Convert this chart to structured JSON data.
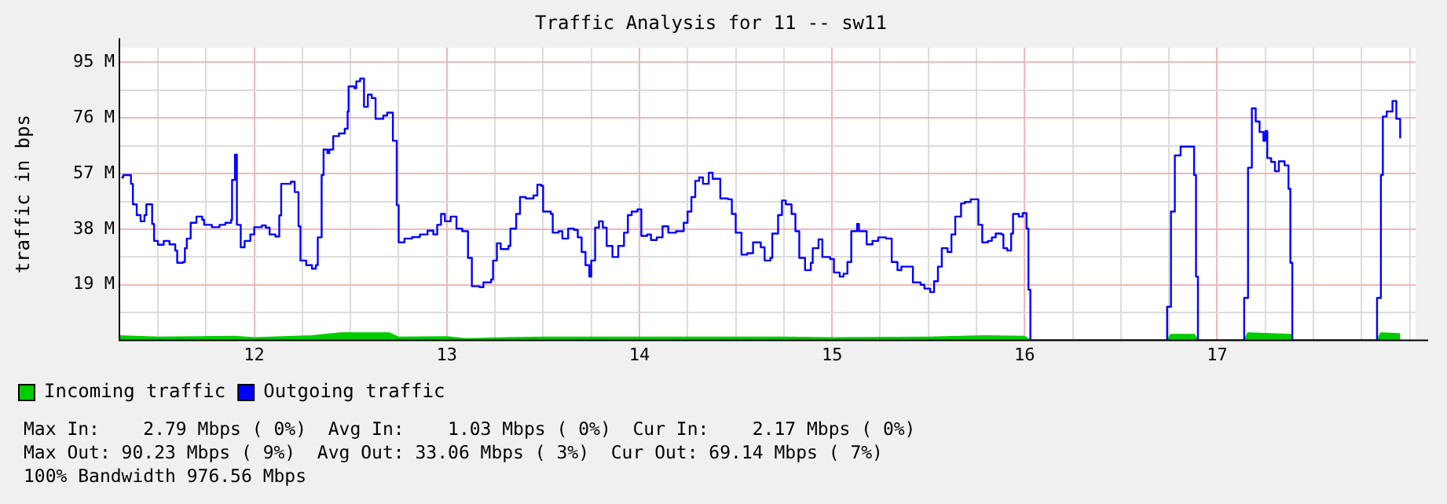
{
  "chart_data": {
    "type": "step",
    "title": "Traffic Analysis for 11 -- sw11",
    "ylabel": "traffic in bps",
    "xlim": [
      11.3,
      18.03
    ],
    "xticks": [
      {
        "value": 11.5,
        "label": null
      },
      {
        "value": 11.75,
        "label": null
      },
      12,
      {
        "value": 12.25,
        "label": null
      },
      {
        "value": 12.5,
        "label": null
      },
      {
        "value": 12.75,
        "label": null
      },
      13,
      {
        "value": 13.25,
        "label": null
      },
      {
        "value": 13.5,
        "label": null
      },
      {
        "value": 13.75,
        "label": null
      },
      14,
      {
        "value": 14.25,
        "label": null
      },
      {
        "value": 14.5,
        "label": null
      },
      {
        "value": 14.75,
        "label": null
      },
      15,
      {
        "value": 15.25,
        "label": null
      },
      {
        "value": 15.5,
        "label": null
      },
      {
        "value": 15.75,
        "label": null
      },
      16,
      {
        "value": 16.25,
        "label": null
      },
      {
        "value": 16.5,
        "label": null
      },
      {
        "value": 16.75,
        "label": null
      },
      17,
      {
        "value": 17.25,
        "label": null
      },
      {
        "value": 17.5,
        "label": null
      },
      {
        "value": 17.75,
        "label": null
      },
      {
        "value": 18,
        "label": null
      }
    ],
    "ylim": [
      0,
      100
    ],
    "yticks": [
      {
        "value": 9.5,
        "label": null
      },
      {
        "value": 19,
        "label": "19 M"
      },
      {
        "value": 28.5,
        "label": null
      },
      {
        "value": 38,
        "label": "38 M"
      },
      {
        "value": 47.5,
        "label": null
      },
      {
        "value": 57,
        "label": "57 M"
      },
      {
        "value": 66.5,
        "label": null
      },
      {
        "value": 76,
        "label": "76 M"
      },
      {
        "value": 85.5,
        "label": null
      },
      {
        "value": 95,
        "label": "95 M"
      }
    ],
    "grid": true,
    "legend": "bottom left",
    "marker": "none",
    "line_style": "solid",
    "series": [
      {
        "name": "Incoming traffic",
        "type": "area",
        "color": "#00cc00",
        "x": [
          11.3,
          11.5,
          11.9,
          12.0,
          12.3,
          12.45,
          12.7,
          12.75,
          13.0,
          13.1,
          13.3,
          13.5,
          14,
          14.5,
          14.75,
          15,
          15.5,
          15.8,
          16.0,
          16.03,
          16.74,
          16.76,
          16.88,
          16.9,
          17.14,
          17.16,
          17.38,
          17.39,
          17.83,
          17.85,
          17.95
        ],
        "values": [
          1.5,
          1,
          1.3,
          0.8,
          1.5,
          2.5,
          2.5,
          1,
          1.2,
          0.5,
          0.8,
          1,
          1,
          1,
          1,
          0.8,
          1,
          1.5,
          1.3,
          0,
          0,
          2,
          2,
          0,
          0,
          2.5,
          2,
          0,
          0,
          2.5,
          2.2
        ]
      },
      {
        "name": "Outgoing traffic",
        "color": "#0000ff",
        "x": [
          11.31,
          11.32,
          11.36,
          11.37,
          11.39,
          11.41,
          11.43,
          11.44,
          11.47,
          11.48,
          11.5,
          11.53,
          11.56,
          11.59,
          11.6,
          11.63,
          11.64,
          11.65,
          11.67,
          11.7,
          11.73,
          11.74,
          11.78,
          11.81,
          11.82,
          11.85,
          11.88,
          11.885,
          11.9,
          11.91,
          11.93,
          11.95,
          11.98,
          12.0,
          12.04,
          12.06,
          12.08,
          12.11,
          12.13,
          12.14,
          12.19,
          12.21,
          12.23,
          12.24,
          12.27,
          12.3,
          12.32,
          12.33,
          12.35,
          12.36,
          12.38,
          12.39,
          12.41,
          12.44,
          12.47,
          12.485,
          12.49,
          12.52,
          12.53,
          12.55,
          12.57,
          12.59,
          12.61,
          12.63,
          12.67,
          12.69,
          12.72,
          12.74,
          12.75,
          12.78,
          12.82,
          12.86,
          12.9,
          12.93,
          12.95,
          12.97,
          12.99,
          13.02,
          13.05,
          13.08,
          13.11,
          13.13,
          13.17,
          13.19,
          13.23,
          13.24,
          13.26,
          13.28,
          13.32,
          13.33,
          13.36,
          13.38,
          13.41,
          13.45,
          13.47,
          13.49,
          13.5,
          13.54,
          13.55,
          13.58,
          13.6,
          13.63,
          13.66,
          13.68,
          13.7,
          13.72,
          13.74,
          13.75,
          13.77,
          13.79,
          13.81,
          13.83,
          13.86,
          13.89,
          13.92,
          13.94,
          13.96,
          13.99,
          14.01,
          14.04,
          14.06,
          14.09,
          14.12,
          14.15,
          14.19,
          14.23,
          14.25,
          14.27,
          14.29,
          14.31,
          14.33,
          14.36,
          14.38,
          14.42,
          14.46,
          14.48,
          14.5,
          14.53,
          14.56,
          14.59,
          14.63,
          14.65,
          14.68,
          14.69,
          14.72,
          14.74,
          14.76,
          14.79,
          14.81,
          14.83,
          14.86,
          14.89,
          14.9,
          14.93,
          14.95,
          14.99,
          15.01,
          15.04,
          15.06,
          15.08,
          15.1,
          15.13,
          15.14,
          15.18,
          15.21,
          15.24,
          15.28,
          15.31,
          15.34,
          15.36,
          15.39,
          15.42,
          15.46,
          15.48,
          15.51,
          15.53,
          15.55,
          15.57,
          15.6,
          15.62,
          15.64,
          15.67,
          15.69,
          15.72,
          15.76,
          15.78,
          15.81,
          15.83,
          15.85,
          15.88,
          15.89,
          15.91,
          15.93,
          15.94,
          15.97,
          15.99,
          16.01,
          16.02,
          16.03,
          16.74,
          16.76,
          16.78,
          16.81,
          16.86,
          16.88,
          16.89,
          16.9,
          17.14,
          17.16,
          17.18,
          17.2,
          17.22,
          17.24,
          17.25,
          17.26,
          17.28,
          17.3,
          17.32,
          17.35,
          17.37,
          17.38,
          17.39,
          17.83,
          17.85,
          17.86,
          17.88,
          17.91,
          17.93,
          17.95
        ],
        "values": [
          55.7,
          56.5,
          53.5,
          46.5,
          42.8,
          40.7,
          42.8,
          46.5,
          39.8,
          34,
          32.7,
          34,
          32.8,
          30.7,
          26.5,
          26.8,
          31.5,
          34.8,
          40.2,
          42.3,
          41.2,
          39.5,
          38.7,
          38.7,
          39.5,
          40.2,
          41.2,
          54.8,
          63.5,
          39.5,
          31.8,
          34,
          36.2,
          38.7,
          39.3,
          38.5,
          36.2,
          35.5,
          42.7,
          53.5,
          54.2,
          50.7,
          39,
          27.3,
          25.7,
          24.5,
          25.7,
          35.2,
          56.5,
          65.2,
          64,
          65.2,
          69.8,
          70.7,
          72.3,
          78.2,
          86.8,
          86.2,
          88.5,
          89.5,
          79.8,
          84,
          82.8,
          75.7,
          76.8,
          77.8,
          68.2,
          46.2,
          33.5,
          34.8,
          35.3,
          36.2,
          37.5,
          36.2,
          39.5,
          43.2,
          40.7,
          42.3,
          38.2,
          37.3,
          28.2,
          18.5,
          18.2,
          19.8,
          20.8,
          27.3,
          33.2,
          31.2,
          32.3,
          38.2,
          43.2,
          49,
          48.5,
          49.5,
          53.2,
          52.8,
          44,
          43.2,
          36.8,
          37.3,
          34.8,
          38.2,
          37.8,
          35.2,
          30.2,
          25.7,
          21.8,
          27.3,
          38.5,
          40.7,
          38.5,
          32.3,
          28.5,
          32.3,
          36.8,
          42.8,
          44,
          44.8,
          35.7,
          36.2,
          34.3,
          35.2,
          39,
          36.8,
          37.3,
          40.2,
          44,
          49,
          54.5,
          55.7,
          53.5,
          57.3,
          55.2,
          48.5,
          48.2,
          43.2,
          36.8,
          29.3,
          29.8,
          33.5,
          31.8,
          27.3,
          28.2,
          36.5,
          42.8,
          47.8,
          46.5,
          43.2,
          37.3,
          28.2,
          24,
          26.5,
          31.5,
          34.5,
          28.5,
          27.8,
          23.2,
          21.8,
          22.8,
          26.8,
          37.3,
          39.8,
          37.3,
          32.8,
          34,
          35.2,
          34.8,
          26.8,
          24,
          25.2,
          25.2,
          19.8,
          19,
          17.7,
          16.5,
          20.2,
          25.2,
          31.5,
          30.2,
          36.2,
          42.3,
          46.8,
          47.3,
          48.2,
          39.5,
          33.5,
          34,
          35.2,
          36.5,
          36.2,
          31.5,
          30.7,
          36.5,
          43.2,
          42.3,
          43.5,
          38.2,
          17.3,
          0,
          11.5,
          44,
          63.2,
          66.2,
          66.2,
          56.5,
          21.8,
          0,
          14.5,
          59,
          79.3,
          74.8,
          71.2,
          68.2,
          71.5,
          62.3,
          61,
          57.8,
          61.2,
          59.8,
          51.8,
          26.5,
          0,
          14.5,
          56.5,
          76.5,
          78.2,
          81.8,
          75.7,
          69
        ]
      }
    ],
    "annotations": [
      "Max In:    2.79 Mbps ( 0%)  Avg In:    1.03 Mbps ( 0%)  Cur In:    2.17 Mbps ( 0%)",
      "Max Out: 90.23 Mbps ( 9%)  Avg Out: 33.06 Mbps ( 3%)  Cur Out: 69.14 Mbps ( 7%)",
      "100% Bandwidth 976.56 Mbps"
    ]
  }
}
